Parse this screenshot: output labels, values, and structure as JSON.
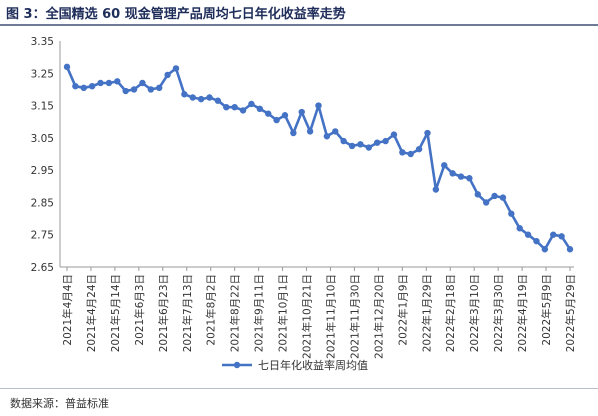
{
  "figure": {
    "title": "图 3：全国精选 60 现金管理产品周均七日年化收益率走势",
    "source": "数据来源：普益标准"
  },
  "chart_data": {
    "type": "line",
    "title": "",
    "xlabel": "",
    "ylabel": "",
    "ylim": [
      2.65,
      3.35
    ],
    "yticks": [
      "3.35",
      "3.25",
      "3.15",
      "3.05",
      "2.95",
      "2.85",
      "2.75",
      "2.65"
    ],
    "grid": false,
    "legend_position": "bottom",
    "x_tick_labels": [
      "2021年4月4日",
      "2021年4月24日",
      "2021年5月14日",
      "2021年6月3日",
      "2021年6月23日",
      "2021年7月13日",
      "2021年8月2日",
      "2021年8月22日",
      "2021年9月11日",
      "2021年10月1日",
      "2021年10月21日",
      "2021年11月10日",
      "2021年11月30日",
      "2021年12月20日",
      "2022年1月9日",
      "2022年1月29日",
      "2022年2月18日",
      "2022年3月10日",
      "2022年3月30日",
      "2022年4月19日",
      "2022年5月9日",
      "2022年5月29日"
    ],
    "series": [
      {
        "name": "七日年化收益率周均值",
        "color": "#4472c4",
        "values": [
          3.27,
          3.21,
          3.205,
          3.21,
          3.22,
          3.22,
          3.225,
          3.195,
          3.2,
          3.22,
          3.2,
          3.205,
          3.245,
          3.265,
          3.185,
          3.175,
          3.17,
          3.175,
          3.165,
          3.145,
          3.145,
          3.135,
          3.155,
          3.14,
          3.125,
          3.105,
          3.12,
          3.065,
          3.13,
          3.07,
          3.15,
          3.055,
          3.07,
          3.04,
          3.025,
          3.03,
          3.02,
          3.035,
          3.04,
          3.06,
          3.005,
          3.0,
          3.015,
          3.065,
          2.89,
          2.965,
          2.94,
          2.93,
          2.925,
          2.875,
          2.85,
          2.87,
          2.865,
          2.815,
          2.77,
          2.75,
          2.73,
          2.705,
          2.75,
          2.745,
          2.705
        ]
      }
    ]
  }
}
